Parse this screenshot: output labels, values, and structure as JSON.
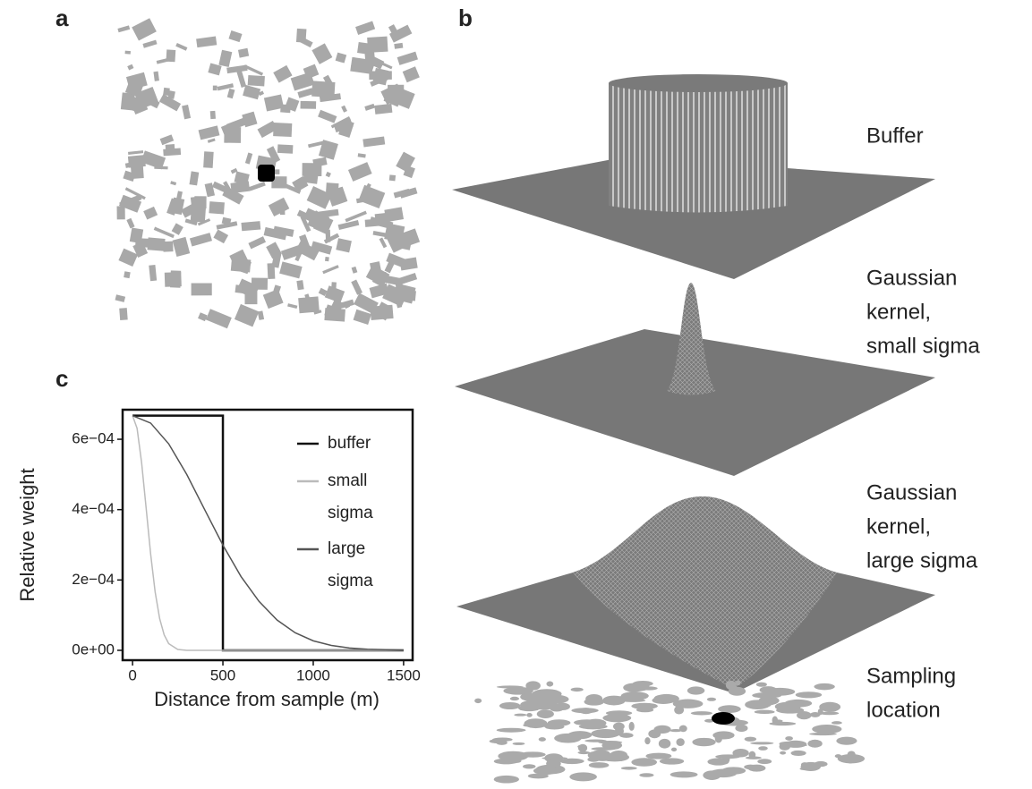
{
  "panel_labels": [
    "a",
    "b",
    "c"
  ],
  "surface_labels": [
    [
      "Buffer"
    ],
    [
      "Gaussian",
      "kernel,",
      "small sigma"
    ],
    [
      "Gaussian",
      "kernel,",
      "large sigma"
    ],
    [
      "Sampling",
      "location"
    ]
  ],
  "chart_data": {
    "type": "line",
    "xlabel": "Distance from sample (m)",
    "ylabel": "Relative weight",
    "xlim": [
      -55,
      1550
    ],
    "ylim": [
      -2.8e-05,
      0.000684
    ],
    "xticks": [
      0,
      500,
      1000,
      1500
    ],
    "yticks": [
      {
        "value": 0,
        "label": "0e+00"
      },
      {
        "value": 0.0002,
        "label": "2e−04"
      },
      {
        "value": 0.0004,
        "label": "4e−04"
      },
      {
        "value": 0.0006,
        "label": "6e−04"
      }
    ],
    "legend": "top-right",
    "series": [
      {
        "name": "buffer",
        "color": "#111111",
        "x": [
          0,
          500,
          500,
          1500
        ],
        "values": [
          0.000667,
          0.000667,
          0,
          0
        ]
      },
      {
        "name": "small sigma",
        "color": "#bbbbbb",
        "x": [
          0,
          25,
          50,
          75,
          100,
          125,
          150,
          175,
          200,
          250,
          300,
          1500
        ],
        "values": [
          0.000667,
          0.000631,
          0.000534,
          0.000405,
          0.000274,
          0.000166,
          9e-05,
          4.4e-05,
          1.9e-05,
          2.6e-06,
          0,
          0
        ]
      },
      {
        "name": "large sigma",
        "color": "#555555",
        "x": [
          0,
          100,
          200,
          300,
          400,
          500,
          600,
          700,
          800,
          900,
          1000,
          1100,
          1200,
          1300,
          1500
        ],
        "values": [
          0.000667,
          0.000646,
          0.000587,
          0.0005,
          0.000399,
          0.000299,
          0.00021,
          0.000139,
          8.6e-05,
          5e-05,
          2.7e-05,
          1.4e-05,
          6.6e-06,
          3e-06,
          5e-07
        ]
      }
    ]
  }
}
